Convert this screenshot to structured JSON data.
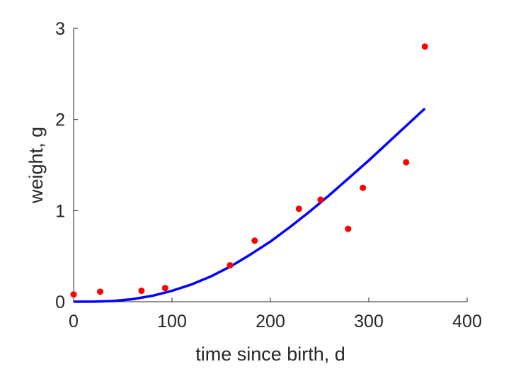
{
  "chart_data": {
    "type": "scatter",
    "title": "",
    "xlabel": "time since birth, d",
    "ylabel": "weight, g",
    "xlim": [
      0,
      400
    ],
    "ylim": [
      0,
      3
    ],
    "xticks": [
      0,
      100,
      200,
      300,
      400
    ],
    "yticks": [
      0,
      1,
      2,
      3
    ],
    "xtick_labels": [
      "0",
      "100",
      "200",
      "300",
      "400"
    ],
    "ytick_labels": [
      "0",
      "1",
      "2",
      "3"
    ],
    "grid": false,
    "box": false,
    "series": [
      {
        "kind": "scatter",
        "color": "#ff0000",
        "points": [
          {
            "x": 0,
            "y": 0.08
          },
          {
            "x": 27,
            "y": 0.11
          },
          {
            "x": 69,
            "y": 0.12
          },
          {
            "x": 93,
            "y": 0.15
          },
          {
            "x": 159,
            "y": 0.4
          },
          {
            "x": 184,
            "y": 0.67
          },
          {
            "x": 229,
            "y": 1.02
          },
          {
            "x": 251,
            "y": 1.12
          },
          {
            "x": 279,
            "y": 0.8
          },
          {
            "x": 294,
            "y": 1.25
          },
          {
            "x": 338,
            "y": 1.53
          },
          {
            "x": 357,
            "y": 2.8
          }
        ]
      },
      {
        "kind": "line",
        "color": "#0000ff",
        "points": [
          {
            "x": 0,
            "y": 0.0
          },
          {
            "x": 20,
            "y": 0.001
          },
          {
            "x": 40,
            "y": 0.008
          },
          {
            "x": 60,
            "y": 0.028
          },
          {
            "x": 80,
            "y": 0.065
          },
          {
            "x": 100,
            "y": 0.12
          },
          {
            "x": 120,
            "y": 0.19
          },
          {
            "x": 140,
            "y": 0.28
          },
          {
            "x": 160,
            "y": 0.39
          },
          {
            "x": 180,
            "y": 0.52
          },
          {
            "x": 200,
            "y": 0.66
          },
          {
            "x": 220,
            "y": 0.82
          },
          {
            "x": 240,
            "y": 0.99
          },
          {
            "x": 260,
            "y": 1.17
          },
          {
            "x": 280,
            "y": 1.36
          },
          {
            "x": 300,
            "y": 1.55
          },
          {
            "x": 320,
            "y": 1.75
          },
          {
            "x": 340,
            "y": 1.95
          },
          {
            "x": 357,
            "y": 2.12
          }
        ]
      }
    ]
  }
}
